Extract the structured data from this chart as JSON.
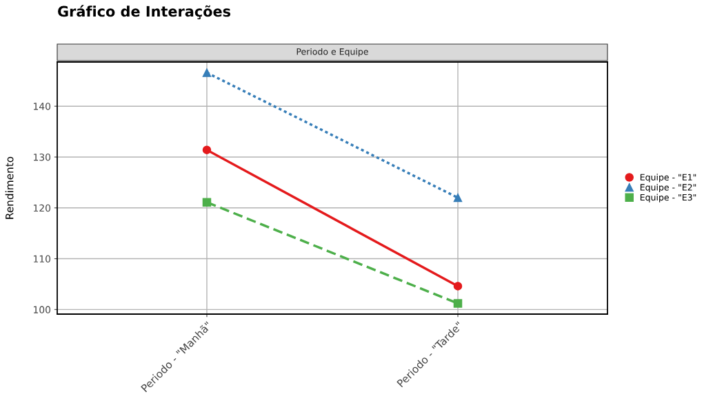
{
  "chart_data": {
    "type": "line",
    "title": "Gráfico de Interações",
    "subtitle": "Periodo e Equipe",
    "ylabel": "Rendimento",
    "categories": [
      "Periodo - \"Manhã\"",
      "Periodo - \"Tarde\""
    ],
    "series": [
      {
        "name": "Equipe - \"E1\"",
        "color": "#e41a1c",
        "values": [
          131.4,
          104.6
        ],
        "marker": "circle",
        "line_style": "solid"
      },
      {
        "name": "Equipe - \"E2\"",
        "color": "#377eb8",
        "values": [
          146.6,
          122.0
        ],
        "marker": "triangle",
        "line_style": "dotted"
      },
      {
        "name": "Equipe - \"E3\"",
        "color": "#4daf4a",
        "values": [
          121.1,
          101.2
        ],
        "marker": "square",
        "line_style": "dashed"
      }
    ],
    "ylim": [
      99.1,
      148.7
    ],
    "yticks": [
      100,
      110,
      120,
      130,
      140
    ],
    "grid": true,
    "legend": "right"
  }
}
